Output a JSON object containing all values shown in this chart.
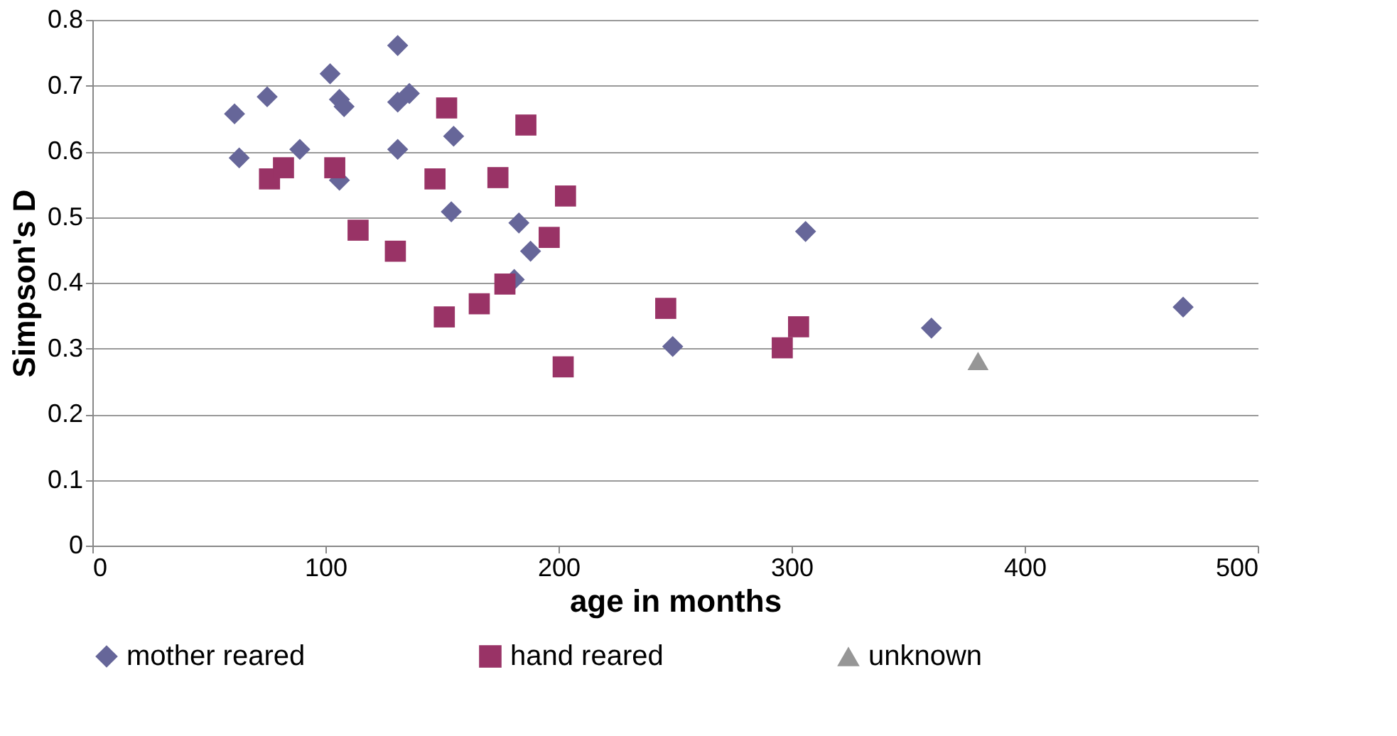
{
  "chart_data": {
    "type": "scatter",
    "xlabel": "age in months",
    "ylabel": "Simpson's D",
    "xlim": [
      0,
      500
    ],
    "xticks": [
      0,
      100,
      200,
      300,
      400,
      500
    ],
    "ylim": [
      0,
      0.8
    ],
    "yticks": [
      0,
      0.1,
      0.2,
      0.3,
      0.4,
      0.5,
      0.6,
      0.7,
      0.8
    ],
    "grid": "y",
    "legend": "bottom",
    "series": [
      {
        "name": "mother reared",
        "color": "#666699",
        "marker": "diamond",
        "x": [
          61,
          75,
          63,
          89,
          102,
          106,
          108,
          106,
          131,
          131,
          136,
          131,
          155,
          154,
          183,
          188,
          181,
          249,
          306,
          360,
          468
        ],
        "values": [
          0.657,
          0.683,
          0.59,
          0.603,
          0.718,
          0.679,
          0.668,
          0.556,
          0.761,
          0.675,
          0.688,
          0.603,
          0.623,
          0.508,
          0.491,
          0.448,
          0.405,
          0.303,
          0.478,
          0.331,
          0.363
        ]
      },
      {
        "name": "hand reared",
        "color": "#993366",
        "marker": "square",
        "x": [
          76,
          82,
          104,
          152,
          147,
          174,
          186,
          203,
          196,
          114,
          130,
          151,
          166,
          177,
          202,
          246,
          303,
          296
        ],
        "values": [
          0.558,
          0.575,
          0.575,
          0.666,
          0.558,
          0.56,
          0.64,
          0.532,
          0.469,
          0.48,
          0.448,
          0.348,
          0.368,
          0.398,
          0.272,
          0.361,
          0.333,
          0.301
        ]
      },
      {
        "name": "unknown",
        "color": "#969696",
        "marker": "triangle",
        "x": [
          380
        ],
        "values": [
          0.281
        ]
      }
    ]
  }
}
